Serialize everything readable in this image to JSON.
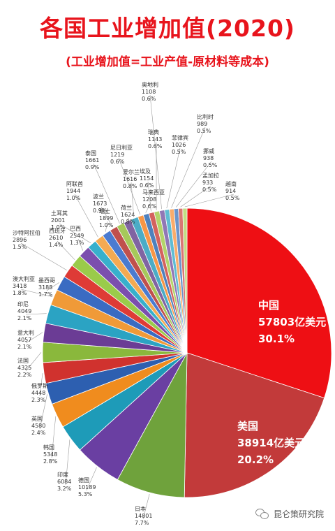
{
  "title": "各国工业增加值(2020)",
  "subtitle": "(工业增加值=工业产值-原材料等成本)",
  "watermark": "昆仑策研究院",
  "chart_data": {
    "type": "pie",
    "title": "各国工业增加值(2020)",
    "unit": "亿美元",
    "start": "clockwise from 12 o'clock",
    "slices": [
      {
        "label": "中国",
        "value": 57803,
        "percent": "30.1%",
        "color": "#ee0f14",
        "value_text": "57803亿美元"
      },
      {
        "label": "美国",
        "value": 38914,
        "percent": "20.2%",
        "color": "#c23a3a",
        "value_text": "38914亿美元"
      },
      {
        "label": "日本",
        "value": 14801,
        "percent": "7.7%",
        "color": "#6fa23c"
      },
      {
        "label": "德国",
        "value": 10189,
        "percent": "5.3%",
        "color": "#6a3fa2"
      },
      {
        "label": "印度",
        "value": 6084,
        "percent": "3.2%",
        "color": "#1e9bb8"
      },
      {
        "label": "韩国",
        "value": 5348,
        "percent": "2.8%",
        "color": "#f08c1e"
      },
      {
        "label": "英国",
        "value": 4580,
        "percent": "2.4%",
        "color": "#2d5fb0"
      },
      {
        "label": "俄罗斯",
        "value": 4448,
        "percent": "2.3%",
        "color": "#d0322e"
      },
      {
        "label": "法国",
        "value": 4325,
        "percent": "2.2%",
        "color": "#8ab83c"
      },
      {
        "label": "意大利",
        "value": 4057,
        "percent": "2.1%",
        "color": "#6b3c95"
      },
      {
        "label": "印尼",
        "value": 4049,
        "percent": "2.1%",
        "color": "#2ba3c3"
      },
      {
        "label": "澳大利亚",
        "value": 3418,
        "percent": "1.8%",
        "color": "#f09a38"
      },
      {
        "label": "墨西哥",
        "value": 3188,
        "percent": "1.7%",
        "color": "#3a6bc2"
      },
      {
        "label": "沙特阿拉伯",
        "value": 2896,
        "percent": "1.5%",
        "color": "#de3b36"
      },
      {
        "label": "西班牙",
        "value": 2610,
        "percent": "1.4%",
        "color": "#9acb4a"
      },
      {
        "label": "巴西",
        "value": 2549,
        "percent": "1.3%",
        "color": "#7b4fae"
      },
      {
        "label": "土耳其",
        "value": 2001,
        "percent": "1.0%",
        "color": "#38b0cc"
      },
      {
        "label": "阿联酋",
        "value": 1944,
        "percent": "1.0%",
        "color": "#f4aa52"
      },
      {
        "label": "瑞士",
        "value": 1899,
        "percent": "1.0%",
        "color": "#4b7bd0"
      },
      {
        "label": "波兰",
        "value": 1673,
        "percent": "0.9%",
        "color": "#c0504d"
      },
      {
        "label": "泰国",
        "value": 1661,
        "percent": "0.9%",
        "color": "#a6c85a"
      },
      {
        "label": "荷兰",
        "value": 1624,
        "percent": "0.8%",
        "color": "#8064a2"
      },
      {
        "label": "爱尔兰",
        "value": 1616,
        "percent": "0.8%",
        "color": "#4bacc6"
      },
      {
        "label": "尼日利亚",
        "value": 1219,
        "percent": "0.6%",
        "color": "#f79646"
      },
      {
        "label": "马来西亚",
        "value": 1208,
        "percent": "0.6%",
        "color": "#4f81bd"
      },
      {
        "label": "埃及",
        "value": 1154,
        "percent": "0.6%",
        "color": "#d4625e"
      },
      {
        "label": "瑞典",
        "value": 1143,
        "percent": "0.6%",
        "color": "#b3d46a"
      },
      {
        "label": "奥地利",
        "value": 1108,
        "percent": "0.6%",
        "color": "#9177b5"
      },
      {
        "label": "菲律宾",
        "value": 1026,
        "percent": "0.5%",
        "color": "#5fbcd3"
      },
      {
        "label": "比利时",
        "value": 989,
        "percent": "0.5%",
        "color": "#f9ac6b"
      },
      {
        "label": "挪威",
        "value": 938,
        "percent": "0.5%",
        "color": "#6a95cc"
      },
      {
        "label": "孟加拉",
        "value": 933,
        "percent": "0.5%",
        "color": "#d97874"
      },
      {
        "label": "越南",
        "value": 914,
        "percent": "0.5%",
        "color": "#c2dd84"
      }
    ]
  }
}
